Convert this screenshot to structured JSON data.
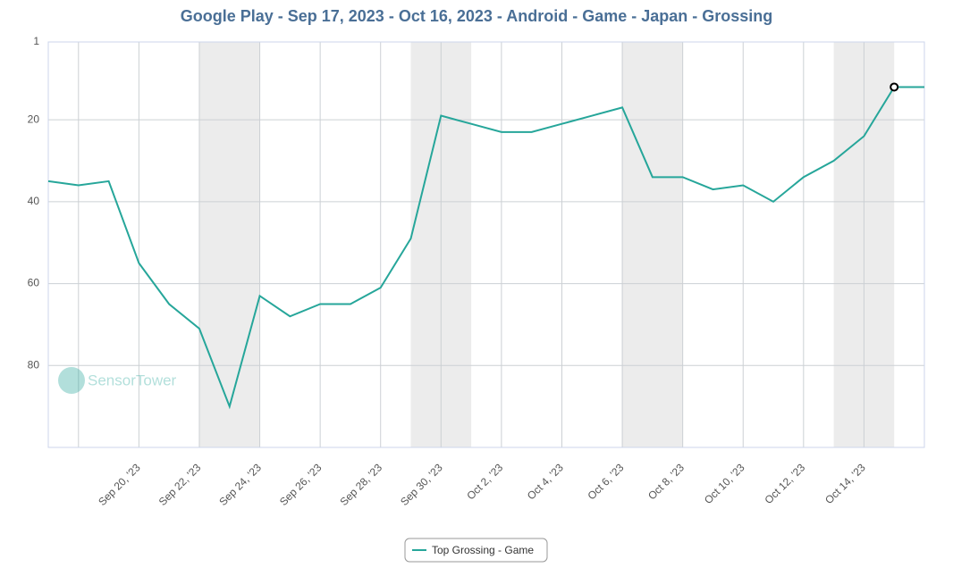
{
  "chart_data": {
    "type": "line",
    "title": "Google Play - Sep 17, 2023 - Oct 16, 2023 - Android - Game - Japan - Grossing",
    "watermark": "SensorTower",
    "categories": [
      null,
      null,
      null,
      "Sep 20, '23",
      null,
      "Sep 22, '23",
      null,
      "Sep 24, '23",
      null,
      "Sep 26, '23",
      null,
      "Sep 28, '23",
      null,
      "Sep 30, '23",
      null,
      "Oct 2, '23",
      null,
      "Oct 4, '23",
      null,
      "Oct 6, '23",
      null,
      "Oct 8, '23",
      null,
      "Oct 10, '23",
      null,
      "Oct 12, '23",
      null,
      "Oct 14, '23",
      null,
      null
    ],
    "series": [
      {
        "name": "Top Grossing - Game",
        "color": "#26a69a",
        "values": [
          35,
          36,
          35,
          55,
          65,
          71,
          90,
          63,
          68,
          65,
          65,
          61,
          49,
          19,
          21,
          23,
          23,
          21,
          19,
          17,
          34,
          34,
          37,
          36,
          40,
          34,
          30,
          24,
          12,
          12
        ]
      }
    ],
    "ylim": [
      1,
      100
    ],
    "yticks": [
      1,
      20,
      40,
      60,
      80
    ],
    "y_inverted": true,
    "grid": true
  }
}
